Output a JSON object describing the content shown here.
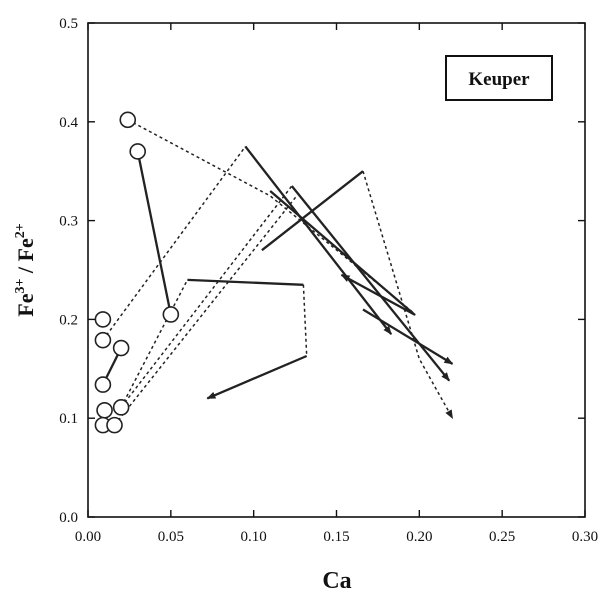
{
  "chart_data": {
    "type": "scatter",
    "title": "",
    "xlabel": "Ca",
    "ylabel_parts": [
      "Fe",
      "3+",
      " / Fe",
      "2+"
    ],
    "legend_label": "Keuper",
    "legend_position": "top-right",
    "xlim": [
      0,
      0.3
    ],
    "ylim": [
      0,
      0.5
    ],
    "x_ticks": [
      0.0,
      0.05,
      0.1,
      0.15,
      0.2,
      0.25,
      0.3
    ],
    "y_ticks": [
      0.0,
      0.1,
      0.2,
      0.3,
      0.4,
      0.5
    ],
    "x_tick_labels": [
      "0.00",
      "0.05",
      "0.10",
      "0.15",
      "0.20",
      "0.25",
      "0.30"
    ],
    "y_tick_labels": [
      "0.0",
      "0.1",
      "0.2",
      "0.3",
      "0.4",
      "0.5"
    ],
    "grid": false,
    "points": [
      {
        "x": 0.024,
        "y": 0.402
      },
      {
        "x": 0.03,
        "y": 0.37
      },
      {
        "x": 0.05,
        "y": 0.205
      },
      {
        "x": 0.009,
        "y": 0.2
      },
      {
        "x": 0.009,
        "y": 0.179
      },
      {
        "x": 0.02,
        "y": 0.171
      },
      {
        "x": 0.009,
        "y": 0.134
      },
      {
        "x": 0.01,
        "y": 0.108
      },
      {
        "x": 0.02,
        "y": 0.111
      },
      {
        "x": 0.009,
        "y": 0.093
      },
      {
        "x": 0.016,
        "y": 0.093
      }
    ],
    "paths": [
      {
        "style": "dashed",
        "arrow": false,
        "points": [
          [
            0.024,
            0.402
          ],
          [
            0.11,
            0.325
          ],
          [
            0.197,
            0.206
          ]
        ]
      },
      {
        "style": "solid",
        "arrow": false,
        "points": [
          [
            0.03,
            0.37
          ],
          [
            0.05,
            0.205
          ]
        ]
      },
      {
        "style": "dashed",
        "arrow": false,
        "points": [
          [
            0.009,
            0.179
          ],
          [
            0.095,
            0.375
          ]
        ]
      },
      {
        "style": "solid",
        "arrow": true,
        "points": [
          [
            0.095,
            0.375
          ],
          [
            0.183,
            0.185
          ]
        ]
      },
      {
        "style": "solid",
        "arrow": false,
        "points": [
          [
            0.009,
            0.134
          ],
          [
            0.02,
            0.171
          ]
        ]
      },
      {
        "style": "dashed",
        "arrow": false,
        "points": [
          [
            0.02,
            0.111
          ],
          [
            0.123,
            0.335
          ]
        ]
      },
      {
        "style": "solid",
        "arrow": true,
        "points": [
          [
            0.123,
            0.335
          ],
          [
            0.218,
            0.138
          ]
        ]
      },
      {
        "style": "dashed",
        "arrow": false,
        "points": [
          [
            0.016,
            0.093
          ],
          [
            0.126,
            0.325
          ]
        ]
      },
      {
        "style": "solid",
        "arrow": true,
        "points": [
          [
            0.11,
            0.33
          ],
          [
            0.197,
            0.205
          ],
          [
            0.153,
            0.245
          ]
        ]
      },
      {
        "style": "dashed",
        "arrow": false,
        "points": [
          [
            0.02,
            0.111
          ],
          [
            0.06,
            0.24
          ],
          [
            0.13,
            0.235
          ]
        ]
      },
      {
        "style": "dashed",
        "arrow": false,
        "points": [
          [
            0.13,
            0.235
          ],
          [
            0.132,
            0.163
          ]
        ]
      },
      {
        "style": "solid",
        "arrow": true,
        "points": [
          [
            0.132,
            0.163
          ],
          [
            0.072,
            0.12
          ]
        ]
      },
      {
        "style": "solid",
        "arrow": false,
        "points": [
          [
            0.06,
            0.24
          ],
          [
            0.13,
            0.235
          ]
        ]
      },
      {
        "style": "solid",
        "arrow": false,
        "points": [
          [
            0.105,
            0.27
          ],
          [
            0.166,
            0.35
          ]
        ]
      },
      {
        "style": "dashed",
        "arrow": true,
        "points": [
          [
            0.166,
            0.35
          ],
          [
            0.2,
            0.16
          ],
          [
            0.22,
            0.1
          ]
        ]
      },
      {
        "style": "solid",
        "arrow": true,
        "points": [
          [
            0.166,
            0.21
          ],
          [
            0.22,
            0.155
          ]
        ]
      }
    ]
  }
}
